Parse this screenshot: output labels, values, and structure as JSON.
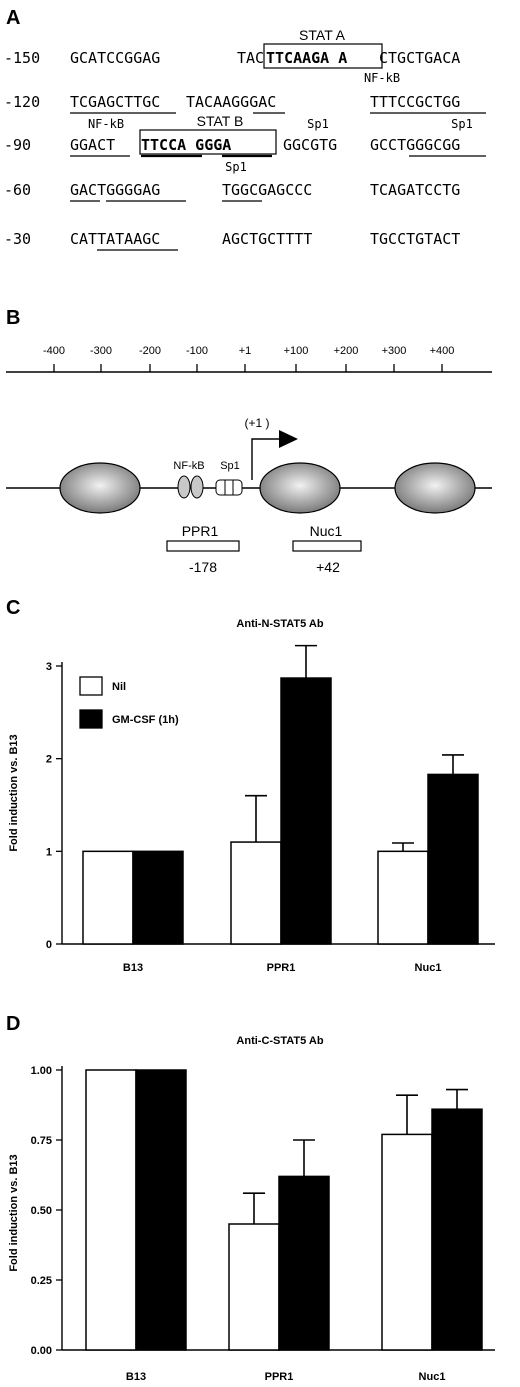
{
  "panelA": {
    "letter": "A",
    "rows": [
      {
        "pos": "-150",
        "seq": [
          "GCATCCGGAG",
          "TAC",
          "TTCAAGA A",
          "CTGCTGACA"
        ]
      },
      {
        "pos": "-120",
        "seq": [
          "TCGAGCTTGC",
          "TACAAGGGAC",
          "TTTCCGCTGG"
        ]
      },
      {
        "pos": "-90",
        "seq": [
          "GGACT",
          "TTCCA GGGA",
          "GGCGTG",
          "GCCTGGGCGG"
        ]
      },
      {
        "pos": "-60",
        "seq": [
          "GACTGGGGAG",
          "TGGCGAGCCC",
          "TCAGATCCTG"
        ]
      },
      {
        "pos": "-30",
        "seq": [
          "CATTATAAGC",
          "AGCTGCTTTT",
          "TGCCTGTACT"
        ]
      }
    ],
    "labels": {
      "stat_a": "STAT A",
      "stat_b": "STAT B",
      "nfkb_1": "NF-kB",
      "nfkb_2": "NF-kB",
      "sp1_1": "Sp1",
      "sp1_2": "Sp1",
      "sp1_3": "Sp1"
    }
  },
  "panelB": {
    "letter": "B",
    "ticks": [
      "-400",
      "-300",
      "-200",
      "-100",
      "+1",
      "+100",
      "+200",
      "+300",
      "+400"
    ],
    "nfkb_label": "NF-kB",
    "sp1_label": "Sp1",
    "tss_label": "(+1 )",
    "regions": [
      {
        "name": "PPR1",
        "position": "-178"
      },
      {
        "name": "Nuc1",
        "position": "+42"
      }
    ]
  },
  "legend": {
    "nil": "Nil",
    "gmcsf": "GM-CSF (1h)"
  },
  "chart_data": [
    {
      "letter": "C",
      "type": "bar",
      "title": "Anti-N-STAT5 Ab",
      "ylabel": "Fold induction vs. B13",
      "categories": [
        "B13",
        "PPR1",
        "Nuc1"
      ],
      "ylim": [
        0,
        3
      ],
      "yticks": [
        "0",
        "1",
        "2",
        "3"
      ],
      "series": [
        {
          "name": "Nil",
          "values": [
            1.0,
            1.1,
            1.0
          ],
          "errors": [
            0,
            0.5,
            0.09
          ],
          "color": "#ffffff"
        },
        {
          "name": "GM-CSF (1h)",
          "values": [
            1.0,
            2.87,
            1.83
          ],
          "errors": [
            0,
            0.35,
            0.21
          ],
          "color": "#000000"
        }
      ]
    },
    {
      "letter": "D",
      "type": "bar",
      "title": "Anti-C-STAT5 Ab",
      "ylabel": "Fold induction vs. B13",
      "categories": [
        "B13",
        "PPR1",
        "Nuc1"
      ],
      "ylim": [
        0,
        1
      ],
      "yticks": [
        "0.00",
        "0.25",
        "0.50",
        "0.75",
        "1.00"
      ],
      "series": [
        {
          "values": [
            1.0,
            0.45,
            0.77
          ],
          "errors": [
            0,
            0.11,
            0.14
          ],
          "color": "#ffffff"
        },
        {
          "values": [
            1.0,
            0.62,
            0.86
          ],
          "errors": [
            0,
            0.13,
            0.07
          ],
          "color": "#000000"
        }
      ]
    }
  ]
}
